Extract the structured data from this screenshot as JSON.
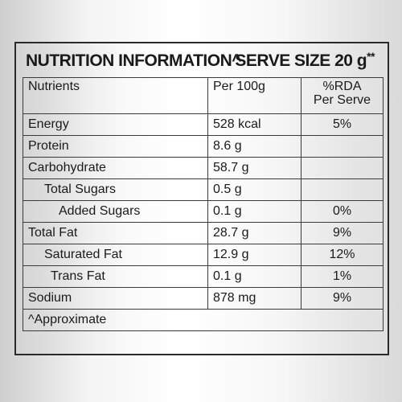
{
  "title": {
    "left": "NUTRITION INFORMATION^",
    "right": "SERVE SIZE 20 g",
    "right_sup": "**"
  },
  "header": {
    "nutrients": "Nutrients",
    "per100": "Per 100g",
    "rda_line1": "%RDA",
    "rda_line2": "Per Serve"
  },
  "rows": [
    {
      "name": "Energy",
      "per100": "528 kcal",
      "rda": "5%"
    },
    {
      "name": "Protein",
      "per100": "8.6 g",
      "rda": ""
    },
    {
      "name": "Carbohydrate",
      "per100": "58.7 g",
      "rda": ""
    },
    {
      "name": "Total Sugars",
      "per100": "0.5 g",
      "rda": ""
    },
    {
      "name": "Added Sugars",
      "per100": "0.1 g",
      "rda": "0%"
    },
    {
      "name": "Total Fat",
      "per100": "28.7 g",
      "rda": "9%"
    },
    {
      "name": "Saturated Fat",
      "per100": "12.9 g",
      "rda": "12%"
    },
    {
      "name": "Trans Fat",
      "per100": "0.1 g",
      "rda": "1%"
    },
    {
      "name": "Sodium",
      "per100": "878 mg",
      "rda": "9%"
    }
  ],
  "footnote": "^Approximate"
}
